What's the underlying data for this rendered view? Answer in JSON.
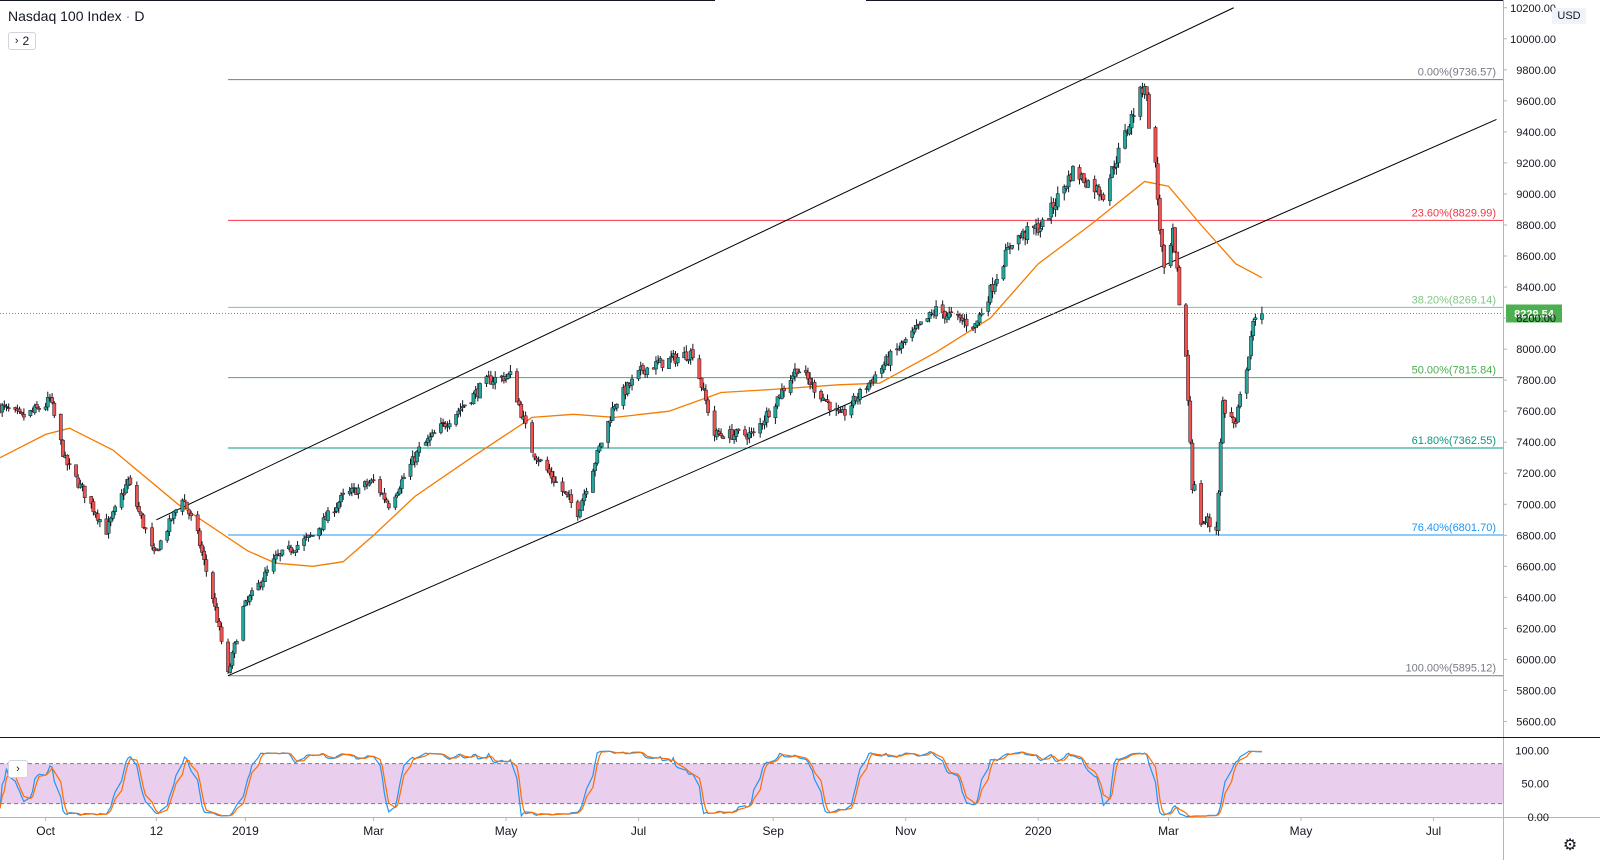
{
  "header": {
    "symbol": "Nasdaq 100 Index",
    "interval": "D",
    "collapse_label": "2",
    "currency": "USD"
  },
  "last_price": "8229.54",
  "colors": {
    "up": "#26a69a",
    "down": "#ef5350",
    "ma": "#f57c00",
    "channel": "#000000",
    "stoch_k": "#2196f3",
    "stoch_d": "#ff6d00",
    "stoch_band": "#e1bee7",
    "price_tag": "#4caf50"
  },
  "chart_data": {
    "type": "candlestick",
    "title": "Nasdaq 100 Index",
    "interval": "D",
    "ylim": [
      5500,
      10250
    ],
    "y_ticks": [
      5600,
      5800,
      6000,
      6200,
      6400,
      6600,
      6800,
      7000,
      7200,
      7400,
      7600,
      7800,
      8000,
      8200,
      8400,
      8600,
      8800,
      9000,
      9200,
      9400,
      9600,
      9800,
      10000,
      10200
    ],
    "y_tick_labels": [
      "5600.00",
      "5800.00",
      "6000.00",
      "6200.00",
      "6400.00",
      "6600.00",
      "6800.00",
      "7000.00",
      "7200.00",
      "7400.00",
      "7600.00",
      "7800.00",
      "8000.00",
      "8200.00",
      "8400.00",
      "8600.00",
      "8800.00",
      "9000.00",
      "9200.00",
      "9400.00",
      "9600.00",
      "9800.00",
      "10000.00",
      "10200.00"
    ],
    "x_range": [
      "2018-09-10",
      "2020-08-02"
    ],
    "x_ticks": [
      {
        "date": "2018-10-01",
        "label": "Oct"
      },
      {
        "date": "2018-11-21",
        "label": "12"
      },
      {
        "date": "2019-01-01",
        "label": "2019"
      },
      {
        "date": "2019-03-01",
        "label": "Mar"
      },
      {
        "date": "2019-05-01",
        "label": "May"
      },
      {
        "date": "2019-07-01",
        "label": "Jul"
      },
      {
        "date": "2019-09-01",
        "label": "Sep"
      },
      {
        "date": "2019-11-01",
        "label": "Nov"
      },
      {
        "date": "2020-01-01",
        "label": "2020"
      },
      {
        "date": "2020-03-01",
        "label": "Mar"
      },
      {
        "date": "2020-05-01",
        "label": "May"
      },
      {
        "date": "2020-07-01",
        "label": "Jul"
      }
    ],
    "price_path": [
      [
        "2018-09-10",
        7630
      ],
      [
        "2018-09-20",
        7560
      ],
      [
        "2018-10-01",
        7640
      ],
      [
        "2018-10-03",
        7680
      ],
      [
        "2018-10-10",
        7280
      ],
      [
        "2018-10-24",
        6950
      ],
      [
        "2018-10-29",
        6830
      ],
      [
        "2018-11-08",
        7150
      ],
      [
        "2018-11-20",
        6670
      ],
      [
        "2018-12-03",
        7050
      ],
      [
        "2018-12-10",
        6800
      ],
      [
        "2018-12-17",
        6400
      ],
      [
        "2018-12-24",
        5900
      ],
      [
        "2018-12-31",
        6330
      ],
      [
        "2019-01-15",
        6650
      ],
      [
        "2019-02-01",
        6800
      ],
      [
        "2019-02-15",
        7050
      ],
      [
        "2019-03-01",
        7150
      ],
      [
        "2019-03-08",
        7000
      ],
      [
        "2019-03-22",
        7350
      ],
      [
        "2019-04-05",
        7550
      ],
      [
        "2019-04-23",
        7800
      ],
      [
        "2019-05-03",
        7830
      ],
      [
        "2019-05-13",
        7350
      ],
      [
        "2019-06-03",
        6950
      ],
      [
        "2019-06-20",
        7650
      ],
      [
        "2019-07-03",
        7870
      ],
      [
        "2019-07-26",
        7980
      ],
      [
        "2019-08-05",
        7450
      ],
      [
        "2019-08-23",
        7450
      ],
      [
        "2019-09-12",
        7880
      ],
      [
        "2019-10-02",
        7560
      ],
      [
        "2019-10-25",
        7950
      ],
      [
        "2019-11-15",
        8250
      ],
      [
        "2019-12-03",
        8150
      ],
      [
        "2019-12-20",
        8700
      ],
      [
        "2020-01-03",
        8800
      ],
      [
        "2020-01-17",
        9150
      ],
      [
        "2020-01-31",
        9000
      ],
      [
        "2020-02-19",
        9720
      ],
      [
        "2020-02-21",
        9500
      ],
      [
        "2020-02-24",
        9150
      ],
      [
        "2020-02-28",
        8450
      ],
      [
        "2020-03-03",
        8700
      ],
      [
        "2020-03-09",
        7950
      ],
      [
        "2020-03-12",
        7150
      ],
      [
        "2020-03-16",
        6900
      ],
      [
        "2020-03-23",
        6850
      ],
      [
        "2020-03-26",
        7650
      ],
      [
        "2020-04-01",
        7490
      ],
      [
        "2020-04-08",
        8090
      ],
      [
        "2020-04-13",
        8229.54
      ]
    ],
    "moving_average": [
      [
        "2018-09-10",
        7300
      ],
      [
        "2018-10-01",
        7450
      ],
      [
        "2018-10-12",
        7490
      ],
      [
        "2018-11-01",
        7350
      ],
      [
        "2018-12-01",
        7000
      ],
      [
        "2019-01-02",
        6700
      ],
      [
        "2019-01-15",
        6620
      ],
      [
        "2019-02-01",
        6600
      ],
      [
        "2019-02-15",
        6630
      ],
      [
        "2019-03-01",
        6800
      ],
      [
        "2019-03-20",
        7050
      ],
      [
        "2019-04-15",
        7300
      ],
      [
        "2019-05-13",
        7560
      ],
      [
        "2019-06-01",
        7580
      ],
      [
        "2019-06-20",
        7560
      ],
      [
        "2019-07-15",
        7600
      ],
      [
        "2019-08-08",
        7720
      ],
      [
        "2019-09-01",
        7740
      ],
      [
        "2019-10-01",
        7770
      ],
      [
        "2019-10-20",
        7780
      ],
      [
        "2019-11-15",
        7980
      ],
      [
        "2019-12-10",
        8200
      ],
      [
        "2020-01-01",
        8550
      ],
      [
        "2020-01-25",
        8800
      ],
      [
        "2020-02-19",
        9080
      ],
      [
        "2020-03-01",
        9050
      ],
      [
        "2020-03-16",
        8800
      ],
      [
        "2020-04-01",
        8550
      ],
      [
        "2020-04-13",
        8460
      ]
    ],
    "channel_lines": [
      {
        "from": [
          "2018-11-21",
          6900
        ],
        "to": [
          "2020-03-31",
          10200
        ]
      },
      {
        "from": [
          "2018-12-24",
          5895
        ],
        "to": [
          "2020-07-30",
          9480
        ]
      }
    ],
    "fibonacci": {
      "from_date": "2018-12-24",
      "levels": [
        {
          "label": "0.00%(9736.57)",
          "value": 9736.57,
          "color": "#787b86"
        },
        {
          "label": "23.60%(8829.99)",
          "value": 8829.99,
          "color": "#f23645"
        },
        {
          "label": "38.20%(8269.14)",
          "value": 8269.14,
          "color": "#81c784"
        },
        {
          "label": "50.00%(7815.84)",
          "value": 7815.84,
          "color": "#4caf50"
        },
        {
          "label": "61.80%(7362.55)",
          "value": 7362.55,
          "color": "#089981"
        },
        {
          "label": "76.40%(6801.70)",
          "value": 6801.7,
          "color": "#2196f3"
        },
        {
          "label": "100.00%(5895.12)",
          "value": 5895.12,
          "color": "#787b86"
        }
      ]
    },
    "oscillator": {
      "type": "stochastic",
      "ylim": [
        0,
        120
      ],
      "upper_band": 80,
      "lower_band": 20,
      "y_ticks": [
        0,
        50,
        100
      ],
      "y_tick_labels": [
        "0.00",
        "50.00",
        "100.00"
      ]
    }
  }
}
